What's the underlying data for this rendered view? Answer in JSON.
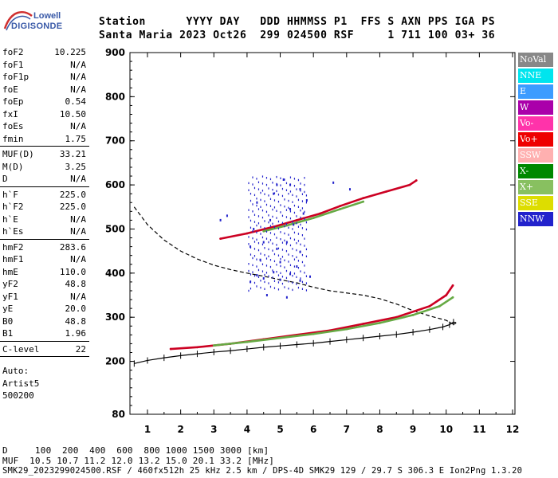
{
  "logo": {
    "top": "Lowell",
    "bottom": "DIGISONDE"
  },
  "header": {
    "line1": "Station      YYYY DAY   DDD HHMMSS P1  FFS S AXN PPS IGA PS",
    "line2": "Santa Maria 2023 Oct26  299 024500 RSF     1 711 100 03+ 36"
  },
  "params": {
    "group1": [
      {
        "k": "foF2",
        "v": "10.225"
      },
      {
        "k": "foF1",
        "v": "N/A"
      },
      {
        "k": "foF1p",
        "v": "N/A"
      },
      {
        "k": "foE",
        "v": "N/A"
      },
      {
        "k": "foEp",
        "v": "0.54"
      },
      {
        "k": "fxI",
        "v": "10.50"
      },
      {
        "k": "foEs",
        "v": "N/A"
      },
      {
        "k": "fmin",
        "v": "1.75"
      }
    ],
    "group2": [
      {
        "k": "MUF(D)",
        "v": "33.21"
      },
      {
        "k": "M(D)",
        "v": "3.25"
      },
      {
        "k": "D",
        "v": "N/A"
      }
    ],
    "group3": [
      {
        "k": "h`F",
        "v": "225.0"
      },
      {
        "k": "h`F2",
        "v": "225.0"
      },
      {
        "k": "h`E",
        "v": "N/A"
      },
      {
        "k": "h`Es",
        "v": "N/A"
      }
    ],
    "group4": [
      {
        "k": "hmF2",
        "v": "283.6"
      },
      {
        "k": "hmF1",
        "v": "N/A"
      },
      {
        "k": "hmE",
        "v": "110.0"
      },
      {
        "k": "yF2",
        "v": "48.8"
      },
      {
        "k": "yF1",
        "v": "N/A"
      },
      {
        "k": "yE",
        "v": "20.0"
      },
      {
        "k": "B0",
        "v": "48.8"
      },
      {
        "k": "B1",
        "v": "1.96"
      }
    ],
    "group5": [
      {
        "k": "C-level",
        "v": "22"
      }
    ],
    "auto": [
      "Auto:",
      "Artist5",
      "500200"
    ]
  },
  "legend": [
    {
      "label": "NoVal",
      "color": "#888888"
    },
    {
      "label": "NNE",
      "color": "#00e5ee"
    },
    {
      "label": "E",
      "color": "#3c9cff"
    },
    {
      "label": "W",
      "color": "#aa00aa"
    },
    {
      "label": "Vo-",
      "color": "#ff33aa"
    },
    {
      "label": "Vo+",
      "color": "#ee0000"
    },
    {
      "label": "SSW",
      "color": "#ffb0b0"
    },
    {
      "label": "X-",
      "color": "#008800"
    },
    {
      "label": "X+",
      "color": "#88c060"
    },
    {
      "label": "SSE",
      "color": "#dddd00"
    },
    {
      "label": "NNW",
      "color": "#2222cc"
    }
  ],
  "footer": {
    "line1": "D     100  200  400  600  800 1000 1500 3000 [km]",
    "line2": "MUF  10.5 10.7 11.2 12.0 13.2 15.0 20.1 33.2 [MHz]",
    "line3": "SMK29_2023299024500.RSF / 460fx512h 25 kHz 2.5 km / DPS-4D SMK29 129 / 29.7 S 306.3 E Ion2Png 1.3.20"
  },
  "chart_data": {
    "type": "scatter",
    "title": "",
    "xlabel": "",
    "ylabel": "",
    "xlim": [
      0.5,
      12
    ],
    "ylim": [
      80,
      900
    ],
    "x_ticks": [
      1,
      2,
      3,
      4,
      5,
      6,
      7,
      8,
      9,
      10,
      11,
      12
    ],
    "y_ticks": [
      80,
      200,
      300,
      400,
      500,
      600,
      700,
      800,
      900
    ],
    "series": [
      {
        "name": "Vo+",
        "color": "#cc0022",
        "points": [
          [
            1.7,
            228
          ],
          [
            2.5,
            232
          ],
          [
            3.5,
            240
          ],
          [
            4.5,
            250
          ],
          [
            5.5,
            260
          ],
          [
            6.5,
            270
          ],
          [
            7.5,
            285
          ],
          [
            8.5,
            300
          ],
          [
            9.5,
            325
          ],
          [
            10.0,
            350
          ],
          [
            10.2,
            372
          ]
        ]
      },
      {
        "name": "X+",
        "color": "#66aa44",
        "points": [
          [
            3.0,
            236
          ],
          [
            4.0,
            244
          ],
          [
            5.0,
            253
          ],
          [
            6.0,
            262
          ],
          [
            7.0,
            273
          ],
          [
            8.0,
            287
          ],
          [
            9.0,
            305
          ],
          [
            9.8,
            325
          ],
          [
            10.2,
            345
          ]
        ]
      },
      {
        "name": "Vo+",
        "color": "#cc0022",
        "points": [
          [
            3.2,
            478
          ],
          [
            4.0,
            490
          ],
          [
            4.8,
            505
          ],
          [
            5.5,
            520
          ],
          [
            6.2,
            535
          ],
          [
            6.8,
            552
          ],
          [
            7.5,
            570
          ],
          [
            8.2,
            585
          ],
          [
            8.9,
            600
          ],
          [
            9.1,
            610
          ]
        ]
      },
      {
        "name": "X+",
        "color": "#66aa44",
        "points": [
          [
            4.5,
            495
          ],
          [
            5.2,
            508
          ],
          [
            6.0,
            525
          ],
          [
            6.8,
            545
          ],
          [
            7.5,
            562
          ]
        ]
      },
      {
        "name": "NNW",
        "color": "#2222cc",
        "points": [
          [
            4.1,
            380
          ],
          [
            4.3,
            395
          ],
          [
            4.5,
            388
          ],
          [
            4.8,
            402
          ],
          [
            5.0,
            385
          ],
          [
            5.3,
            398
          ],
          [
            5.6,
            383
          ],
          [
            5.9,
            392
          ],
          [
            4.4,
            430
          ],
          [
            4.9,
            455
          ],
          [
            5.2,
            470
          ],
          [
            5.6,
            448
          ],
          [
            4.2,
            500
          ],
          [
            4.7,
            520
          ],
          [
            5.3,
            545
          ],
          [
            5.8,
            565
          ],
          [
            4.3,
            560
          ],
          [
            4.8,
            580
          ],
          [
            5.3,
            600
          ],
          [
            5.6,
            590
          ],
          [
            4.5,
            470
          ],
          [
            5.0,
            425
          ],
          [
            5.4,
            510
          ],
          [
            5.7,
            535
          ],
          [
            4.6,
            350
          ],
          [
            5.2,
            345
          ],
          [
            4.1,
            460
          ],
          [
            5.5,
            415
          ],
          [
            4.9,
            600
          ],
          [
            5.1,
            612
          ],
          [
            6.6,
            605
          ],
          [
            7.1,
            590
          ],
          [
            3.2,
            520
          ],
          [
            3.4,
            530
          ]
        ]
      }
    ],
    "virtual_height_profile": {
      "name": "profile",
      "points": [
        [
          0.6,
          550
        ],
        [
          1.0,
          510
        ],
        [
          1.5,
          475
        ],
        [
          2.0,
          450
        ],
        [
          2.5,
          432
        ],
        [
          3.0,
          418
        ],
        [
          3.5,
          408
        ],
        [
          4.0,
          400
        ],
        [
          4.5,
          393
        ],
        [
          5.0,
          385
        ],
        [
          5.5,
          378
        ],
        [
          6.0,
          368
        ],
        [
          6.5,
          360
        ],
        [
          7.0,
          355
        ],
        [
          7.5,
          350
        ],
        [
          8.0,
          342
        ],
        [
          8.5,
          330
        ],
        [
          9.0,
          315
        ],
        [
          9.5,
          303
        ],
        [
          10.0,
          293
        ],
        [
          10.22,
          284
        ]
      ]
    },
    "true_height_profile": {
      "name": "true-height",
      "points": [
        [
          0.6,
          195
        ],
        [
          1.0,
          202
        ],
        [
          1.5,
          208
        ],
        [
          2.0,
          213
        ],
        [
          2.5,
          217
        ],
        [
          3.0,
          221
        ],
        [
          3.5,
          224
        ],
        [
          4.0,
          228
        ],
        [
          4.5,
          232
        ],
        [
          5.0,
          235
        ],
        [
          5.5,
          238
        ],
        [
          6.0,
          241
        ],
        [
          6.5,
          245
        ],
        [
          7.0,
          249
        ],
        [
          7.5,
          253
        ],
        [
          8.0,
          257
        ],
        [
          8.5,
          261
        ],
        [
          9.0,
          266
        ],
        [
          9.5,
          272
        ],
        [
          9.9,
          278
        ],
        [
          10.1,
          283
        ],
        [
          10.22,
          289
        ]
      ]
    }
  }
}
